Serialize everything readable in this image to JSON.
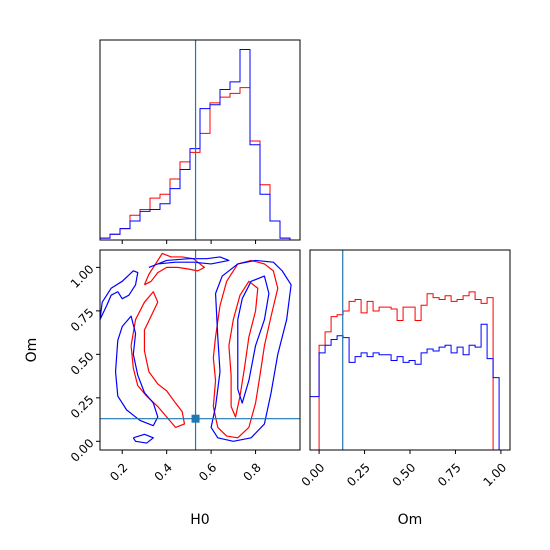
{
  "chart_data": {
    "type": "corner",
    "colors": {
      "series_a": "#ff0000",
      "series_b": "#0000ff",
      "truth": "#1f77b4"
    },
    "axis_labels": {
      "h0": "H0",
      "om": "Om"
    },
    "truth": {
      "H0": 0.53,
      "Om": 0.13
    },
    "h0_ticks": [
      "0.2",
      "0.4",
      "0.6",
      "0.8"
    ],
    "om_ticks_scatter": [
      "0.00",
      "0.25",
      "0.50",
      "0.75",
      "1.00"
    ],
    "om_ticks_hist": [
      "0.00",
      "0.25",
      "0.50",
      "0.75",
      "1.00"
    ],
    "h0_hist": {
      "xlim": [
        0.1,
        1.0
      ],
      "edges": [
        0.1,
        0.145,
        0.19,
        0.235,
        0.28,
        0.325,
        0.37,
        0.415,
        0.46,
        0.505,
        0.55,
        0.595,
        0.64,
        0.685,
        0.73,
        0.775,
        0.82,
        0.865,
        0.91,
        0.955,
        1.0
      ],
      "series_a": [
        0.01,
        0.03,
        0.06,
        0.13,
        0.16,
        0.22,
        0.24,
        0.32,
        0.41,
        0.46,
        0.56,
        0.72,
        0.75,
        0.77,
        0.8,
        0.52,
        0.29,
        0.1,
        0.01,
        0.0
      ],
      "series_b": [
        0.01,
        0.03,
        0.06,
        0.1,
        0.15,
        0.16,
        0.19,
        0.27,
        0.37,
        0.48,
        0.69,
        0.71,
        0.79,
        0.83,
        1.0,
        0.5,
        0.24,
        0.1,
        0.01,
        0.0
      ]
    },
    "om_hist": {
      "xlim": [
        -0.05,
        1.05
      ],
      "edges": [
        -0.05,
        0.0,
        0.033,
        0.066,
        0.099,
        0.132,
        0.165,
        0.198,
        0.231,
        0.264,
        0.297,
        0.33,
        0.363,
        0.396,
        0.429,
        0.462,
        0.495,
        0.528,
        0.561,
        0.594,
        0.627,
        0.66,
        0.693,
        0.726,
        0.759,
        0.792,
        0.825,
        0.858,
        0.891,
        0.924,
        0.957,
        0.99,
        1.05
      ],
      "series_a": [
        0.0,
        0.55,
        0.62,
        0.7,
        0.71,
        0.73,
        0.78,
        0.79,
        0.72,
        0.78,
        0.73,
        0.75,
        0.75,
        0.74,
        0.68,
        0.75,
        0.75,
        0.68,
        0.76,
        0.82,
        0.8,
        0.79,
        0.81,
        0.78,
        0.79,
        0.81,
        0.83,
        0.79,
        0.77,
        0.8,
        0.0,
        0.0
      ],
      "series_b": [
        0.28,
        0.51,
        0.55,
        0.58,
        0.6,
        0.59,
        0.46,
        0.49,
        0.51,
        0.49,
        0.51,
        0.5,
        0.5,
        0.47,
        0.49,
        0.46,
        0.47,
        0.45,
        0.51,
        0.53,
        0.52,
        0.54,
        0.55,
        0.51,
        0.54,
        0.5,
        0.55,
        0.54,
        0.66,
        0.48,
        0.38,
        0.0
      ]
    },
    "contours": {
      "xlim": [
        0.1,
        1.0
      ],
      "ylim": [
        -0.05,
        1.1
      ],
      "series_a": [
        [
          [
            0.3,
            0.9
          ],
          [
            0.32,
            0.96
          ],
          [
            0.35,
            1.02
          ],
          [
            0.38,
            1.08
          ],
          [
            0.42,
            1.06
          ],
          [
            0.47,
            1.06
          ],
          [
            0.52,
            1.05
          ],
          [
            0.55,
            1.02
          ],
          [
            0.57,
            1.0
          ],
          [
            0.54,
            0.98
          ],
          [
            0.5,
            0.99
          ],
          [
            0.45,
            1.0
          ],
          [
            0.4,
            1.0
          ],
          [
            0.36,
            0.97
          ],
          [
            0.33,
            0.92
          ],
          [
            0.3,
            0.9
          ]
        ],
        [
          [
            0.24,
            0.55
          ],
          [
            0.26,
            0.7
          ],
          [
            0.3,
            0.8
          ],
          [
            0.34,
            0.86
          ],
          [
            0.36,
            0.8
          ],
          [
            0.33,
            0.72
          ],
          [
            0.3,
            0.64
          ],
          [
            0.3,
            0.52
          ],
          [
            0.32,
            0.4
          ],
          [
            0.36,
            0.33
          ],
          [
            0.4,
            0.29
          ],
          [
            0.44,
            0.22
          ],
          [
            0.47,
            0.17
          ],
          [
            0.48,
            0.1
          ],
          [
            0.44,
            0.08
          ],
          [
            0.4,
            0.14
          ],
          [
            0.36,
            0.2
          ],
          [
            0.31,
            0.26
          ],
          [
            0.27,
            0.32
          ],
          [
            0.25,
            0.42
          ],
          [
            0.24,
            0.55
          ]
        ],
        [
          [
            0.62,
            0.6
          ],
          [
            0.64,
            0.78
          ],
          [
            0.67,
            0.92
          ],
          [
            0.72,
            1.02
          ],
          [
            0.78,
            1.04
          ],
          [
            0.84,
            1.02
          ],
          [
            0.88,
            0.98
          ],
          [
            0.9,
            0.88
          ],
          [
            0.87,
            0.72
          ],
          [
            0.84,
            0.55
          ],
          [
            0.82,
            0.38
          ],
          [
            0.8,
            0.22
          ],
          [
            0.77,
            0.08
          ],
          [
            0.72,
            0.02
          ],
          [
            0.67,
            0.03
          ],
          [
            0.63,
            0.08
          ],
          [
            0.61,
            0.2
          ],
          [
            0.62,
            0.35
          ],
          [
            0.61,
            0.48
          ],
          [
            0.62,
            0.6
          ]
        ],
        [
          [
            0.68,
            0.55
          ],
          [
            0.7,
            0.7
          ],
          [
            0.73,
            0.84
          ],
          [
            0.77,
            0.92
          ],
          [
            0.81,
            0.88
          ],
          [
            0.8,
            0.75
          ],
          [
            0.77,
            0.6
          ],
          [
            0.75,
            0.42
          ],
          [
            0.73,
            0.26
          ],
          [
            0.71,
            0.14
          ],
          [
            0.69,
            0.2
          ],
          [
            0.69,
            0.38
          ],
          [
            0.68,
            0.55
          ]
        ]
      ],
      "series_b": [
        [
          [
            0.1,
            0.7
          ],
          [
            0.13,
            0.78
          ],
          [
            0.15,
            0.84
          ],
          [
            0.18,
            0.86
          ],
          [
            0.2,
            0.82
          ],
          [
            0.23,
            0.84
          ],
          [
            0.26,
            0.9
          ],
          [
            0.27,
            0.97
          ],
          [
            0.25,
            0.98
          ],
          [
            0.2,
            0.92
          ],
          [
            0.15,
            0.88
          ],
          [
            0.11,
            0.8
          ],
          [
            0.1,
            0.7
          ]
        ],
        [
          [
            0.18,
            0.58
          ],
          [
            0.2,
            0.66
          ],
          [
            0.24,
            0.72
          ],
          [
            0.26,
            0.62
          ],
          [
            0.25,
            0.5
          ],
          [
            0.27,
            0.38
          ],
          [
            0.3,
            0.28
          ],
          [
            0.34,
            0.22
          ],
          [
            0.36,
            0.14
          ],
          [
            0.34,
            0.09
          ],
          [
            0.28,
            0.12
          ],
          [
            0.22,
            0.18
          ],
          [
            0.18,
            0.26
          ],
          [
            0.17,
            0.4
          ],
          [
            0.18,
            0.58
          ]
        ],
        [
          [
            0.25,
            0.02
          ],
          [
            0.3,
            0.04
          ],
          [
            0.34,
            0.02
          ],
          [
            0.31,
            -0.01
          ],
          [
            0.26,
            0.0
          ],
          [
            0.25,
            0.02
          ]
        ],
        [
          [
            0.32,
            1.0
          ],
          [
            0.4,
            1.04
          ],
          [
            0.5,
            1.05
          ],
          [
            0.58,
            1.05
          ],
          [
            0.64,
            1.06
          ],
          [
            0.68,
            1.04
          ],
          [
            0.6,
            1.02
          ],
          [
            0.52,
            1.03
          ],
          [
            0.44,
            1.03
          ],
          [
            0.36,
            1.02
          ],
          [
            0.32,
            1.0
          ]
        ],
        [
          [
            0.62,
            0.85
          ],
          [
            0.65,
            0.95
          ],
          [
            0.72,
            1.02
          ],
          [
            0.8,
            1.04
          ],
          [
            0.88,
            1.03
          ],
          [
            0.92,
            0.98
          ],
          [
            0.96,
            0.9
          ],
          [
            0.94,
            0.7
          ],
          [
            0.9,
            0.5
          ],
          [
            0.87,
            0.28
          ],
          [
            0.84,
            0.1
          ],
          [
            0.78,
            0.02
          ],
          [
            0.7,
            0.0
          ],
          [
            0.63,
            0.02
          ],
          [
            0.6,
            0.08
          ],
          [
            0.62,
            0.2
          ],
          [
            0.64,
            0.4
          ],
          [
            0.63,
            0.6
          ],
          [
            0.62,
            0.85
          ]
        ],
        [
          [
            0.72,
            0.7
          ],
          [
            0.74,
            0.82
          ],
          [
            0.78,
            0.92
          ],
          [
            0.84,
            0.95
          ],
          [
            0.86,
            0.85
          ],
          [
            0.84,
            0.7
          ],
          [
            0.8,
            0.55
          ],
          [
            0.77,
            0.35
          ],
          [
            0.74,
            0.22
          ],
          [
            0.72,
            0.3
          ],
          [
            0.72,
            0.5
          ],
          [
            0.72,
            0.7
          ]
        ]
      ]
    }
  }
}
